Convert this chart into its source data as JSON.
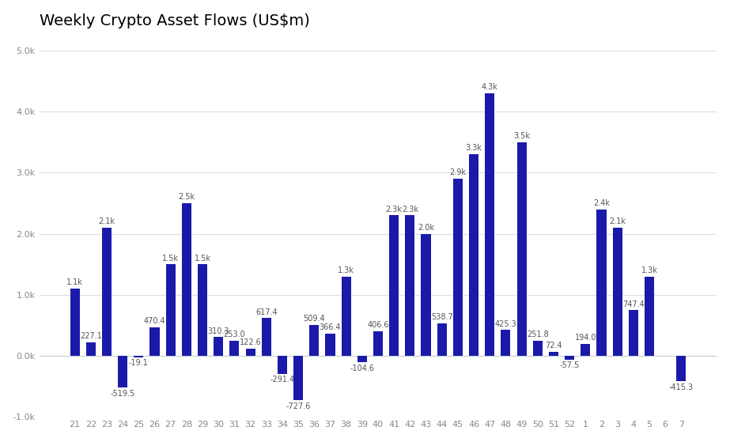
{
  "title": "Weekly Crypto Asset Flows (US$m)",
  "categories": [
    "21",
    "22",
    "23",
    "24",
    "25",
    "26",
    "27",
    "28",
    "29",
    "30",
    "31",
    "32",
    "33",
    "34",
    "35",
    "36",
    "37",
    "38",
    "39",
    "40",
    "41",
    "42",
    "43",
    "44",
    "45",
    "46",
    "47",
    "48",
    "49",
    "50",
    "51",
    "52",
    "1",
    "2",
    "3",
    "4",
    "5",
    "6",
    "7"
  ],
  "values": [
    1100,
    227.1,
    2100,
    -519.5,
    -19.1,
    470.4,
    1500,
    2500,
    1500,
    310.3,
    253.0,
    122.6,
    617.4,
    -291.4,
    -727.6,
    509.4,
    366.4,
    1300,
    -104.6,
    406.6,
    2300,
    2300,
    2000,
    538.7,
    2900,
    3300,
    4300,
    425.3,
    3500,
    251.8,
    72.4,
    -57.5,
    194.0,
    2400,
    2100,
    747.4,
    1300,
    0,
    -415.3
  ],
  "bar_color": "#1a1aaa",
  "bg_color": "#ffffff",
  "grid_color": "#dddddd",
  "title_fontsize": 14,
  "tick_fontsize": 8,
  "label_fontsize": 7,
  "ylim": [
    -1000,
    5200
  ],
  "yticks": [
    -1000,
    0,
    1000,
    2000,
    3000,
    4000,
    5000
  ]
}
